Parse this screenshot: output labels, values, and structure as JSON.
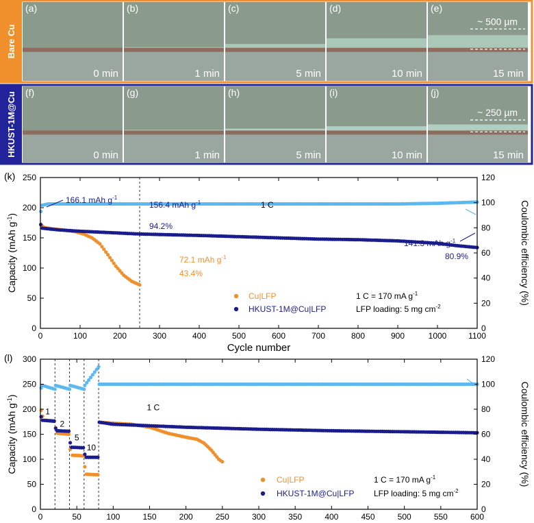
{
  "photo_rows": [
    {
      "row_label": "Bare Cu",
      "frame_color": "#f0902c",
      "deposit_color": "#a9c8b8",
      "scale_label": "~ 500 µm",
      "panels": [
        {
          "tag": "(a)",
          "time": "0 min",
          "deposit": 0.0
        },
        {
          "tag": "(b)",
          "time": "1 min",
          "deposit": 0.05
        },
        {
          "tag": "(c)",
          "time": "5 min",
          "deposit": 0.3
        },
        {
          "tag": "(d)",
          "time": "10 min",
          "deposit": 0.75
        },
        {
          "tag": "(e)",
          "time": "15 min",
          "deposit": 1.0
        }
      ]
    },
    {
      "row_label": "HKUST-1M@Cu",
      "frame_color": "#22239a",
      "deposit_color": "#b0cec2",
      "scale_label": "~ 250 µm",
      "panels": [
        {
          "tag": "(f)",
          "time": "0 min",
          "deposit": 0.0
        },
        {
          "tag": "(g)",
          "time": "1 min",
          "deposit": 0.05
        },
        {
          "tag": "(h)",
          "time": "5 min",
          "deposit": 0.15
        },
        {
          "tag": "(i)",
          "time": "10 min",
          "deposit": 0.35
        },
        {
          "tag": "(j)",
          "time": "15 min",
          "deposit": 0.5
        }
      ]
    }
  ],
  "chart_data": [
    {
      "panel": "(k)",
      "type": "scatter",
      "xlabel": "Cycle number",
      "ylabel": "Capacity (mAh g",
      "ylabel_sup": "-1",
      "ylabel_end": ")",
      "y2label": "Coulombic efficiency (%)",
      "xlim": [
        0,
        1100
      ],
      "ylim": [
        0,
        250
      ],
      "y2lim": [
        0,
        120
      ],
      "xticks": [
        0,
        100,
        200,
        300,
        400,
        500,
        600,
        700,
        800,
        900,
        1000,
        1100
      ],
      "yticks": [
        0,
        50,
        100,
        150,
        200,
        250
      ],
      "y2ticks": [
        0,
        20,
        40,
        60,
        80,
        100,
        120
      ],
      "vlines": [
        250
      ],
      "series": [
        {
          "name": "Cu|LFP",
          "color": "#f0902c",
          "axis": "left",
          "points": [
            [
              1,
              172
            ],
            [
              10,
              167
            ],
            [
              30,
              165
            ],
            [
              60,
              163
            ],
            [
              90,
              160
            ],
            [
              110,
              156
            ],
            [
              130,
              150
            ],
            [
              150,
              140
            ],
            [
              170,
              122
            ],
            [
              190,
              103
            ],
            [
              210,
              88
            ],
            [
              230,
              78
            ],
            [
              250,
              72
            ]
          ]
        },
        {
          "name": "HKUST-1M@Cu|LFP",
          "color": "#1a1c8c",
          "axis": "left",
          "points": [
            [
              1,
              172
            ],
            [
              5,
              166
            ],
            [
              50,
              163
            ],
            [
              100,
              161
            ],
            [
              250,
              156.4
            ],
            [
              400,
              154
            ],
            [
              500,
              152
            ],
            [
              600,
              150
            ],
            [
              700,
              148
            ],
            [
              800,
              147
            ],
            [
              900,
              145
            ],
            [
              1000,
              141
            ],
            [
              1050,
              137
            ],
            [
              1100,
              134
            ]
          ]
        },
        {
          "name": "CE",
          "color": "#5cb8ee",
          "axis": "right",
          "points": [
            [
              1,
              93
            ],
            [
              5,
              98
            ],
            [
              20,
              99
            ],
            [
              100,
              99
            ],
            [
              300,
              99
            ],
            [
              600,
              99
            ],
            [
              900,
              99
            ],
            [
              1000,
              99.5
            ],
            [
              1050,
              100
            ],
            [
              1100,
              100.5
            ]
          ]
        }
      ],
      "legend": [
        {
          "label": "Cu|LFP",
          "color": "#f0902c"
        },
        {
          "label": "HKUST-1M@Cu|LFP",
          "color": "#1a1c8c"
        }
      ],
      "notes": {
        "rate_def": "1 C = 170 mA g",
        "rate_def_sup": "-1",
        "loading": "LFP loading: 5 mg cm",
        "loading_sup": "-2",
        "rate": "1 C"
      },
      "annotations": {
        "a1": "166.1 mAh g",
        "a1_sup": "-1",
        "a2": "156.4 mAh g",
        "a2_sup": "-1",
        "a3": "94.2%",
        "a4": "72.1 mAh g",
        "a4_sup": "-1",
        "a5": "43.4%",
        "a6": "141.3 mAh g",
        "a6_sup": "-1",
        "a7": "80.9%"
      }
    },
    {
      "panel": "(l)",
      "type": "scatter",
      "xlabel": "",
      "ylabel": "Capacity (mAh g",
      "ylabel_sup": "-1",
      "ylabel_end": ")",
      "y2label": "Coulombic efficiency (%)",
      "xlim": [
        0,
        600
      ],
      "ylim": [
        0,
        300
      ],
      "y2lim": [
        0,
        120
      ],
      "xticks": [
        0,
        50,
        100,
        150,
        200,
        250,
        300,
        350,
        400,
        450,
        500,
        550,
        600
      ],
      "yticks": [
        0,
        50,
        100,
        150,
        200,
        250,
        300
      ],
      "y2ticks": [
        0,
        20,
        40,
        60,
        80,
        100,
        120
      ],
      "vlines": [
        20,
        40,
        60,
        80
      ],
      "rate_labels": [
        {
          "label": "1",
          "x": 10,
          "y": 190
        },
        {
          "label": "2",
          "x": 30,
          "y": 165
        },
        {
          "label": "5",
          "x": 50,
          "y": 138
        },
        {
          "label": "10",
          "x": 70,
          "y": 118
        },
        {
          "label": "1 C",
          "x": 155,
          "y": 198
        }
      ],
      "series": [
        {
          "name": "Cu|LFP",
          "color": "#f0902c",
          "axis": "left",
          "points": [
            [
              1,
              198
            ],
            [
              3,
              186
            ],
            [
              6,
              178
            ],
            [
              19,
              177
            ],
            [
              21,
              163
            ],
            [
              23,
              152
            ],
            [
              39,
              150
            ],
            [
              41,
              120
            ],
            [
              44,
              108
            ],
            [
              59,
              107
            ],
            [
              61,
              85
            ],
            [
              63,
              70
            ],
            [
              79,
              69
            ],
            [
              81,
              174
            ],
            [
              100,
              172
            ],
            [
              125,
              170
            ],
            [
              150,
              164
            ],
            [
              175,
              152
            ],
            [
              200,
              144
            ],
            [
              215,
              140
            ],
            [
              225,
              132
            ],
            [
              235,
              118
            ],
            [
              245,
              100
            ],
            [
              250,
              95
            ]
          ]
        },
        {
          "name": "HKUST-1M@Cu|LFP",
          "color": "#1a1c8c",
          "axis": "left",
          "points": [
            [
              1,
              185
            ],
            [
              3,
              178
            ],
            [
              19,
              176
            ],
            [
              21,
              162
            ],
            [
              23,
              157
            ],
            [
              39,
              156
            ],
            [
              41,
              133
            ],
            [
              43,
              124
            ],
            [
              59,
              123
            ],
            [
              61,
              110
            ],
            [
              63,
              104
            ],
            [
              79,
              104
            ],
            [
              81,
              174
            ],
            [
              100,
              170
            ],
            [
              150,
              167
            ],
            [
              200,
              164
            ],
            [
              300,
              160
            ],
            [
              400,
              157
            ],
            [
              500,
              155
            ],
            [
              600,
              153
            ]
          ]
        },
        {
          "name": "CE",
          "color": "#5cb8ee",
          "axis": "right",
          "points": [
            [
              1,
              97
            ],
            [
              3,
              99
            ],
            [
              20,
              96
            ],
            [
              21,
              99
            ],
            [
              40,
              96
            ],
            [
              41,
              99
            ],
            [
              60,
              96
            ],
            [
              61,
              99
            ],
            [
              80,
              114
            ],
            [
              81,
              100
            ],
            [
              150,
              100
            ],
            [
              300,
              100
            ],
            [
              450,
              100
            ],
            [
              600,
              100
            ]
          ]
        }
      ],
      "legend": [
        {
          "label": "Cu|LFP",
          "color": "#f0902c"
        },
        {
          "label": "HKUST-1M@Cu|LFP",
          "color": "#1a1c8c"
        }
      ],
      "notes": {
        "rate_def": "1 C = 170 mA g",
        "rate_def_sup": "-1",
        "loading": "LFP loading: 5 mg cm",
        "loading_sup": "-2"
      }
    }
  ]
}
